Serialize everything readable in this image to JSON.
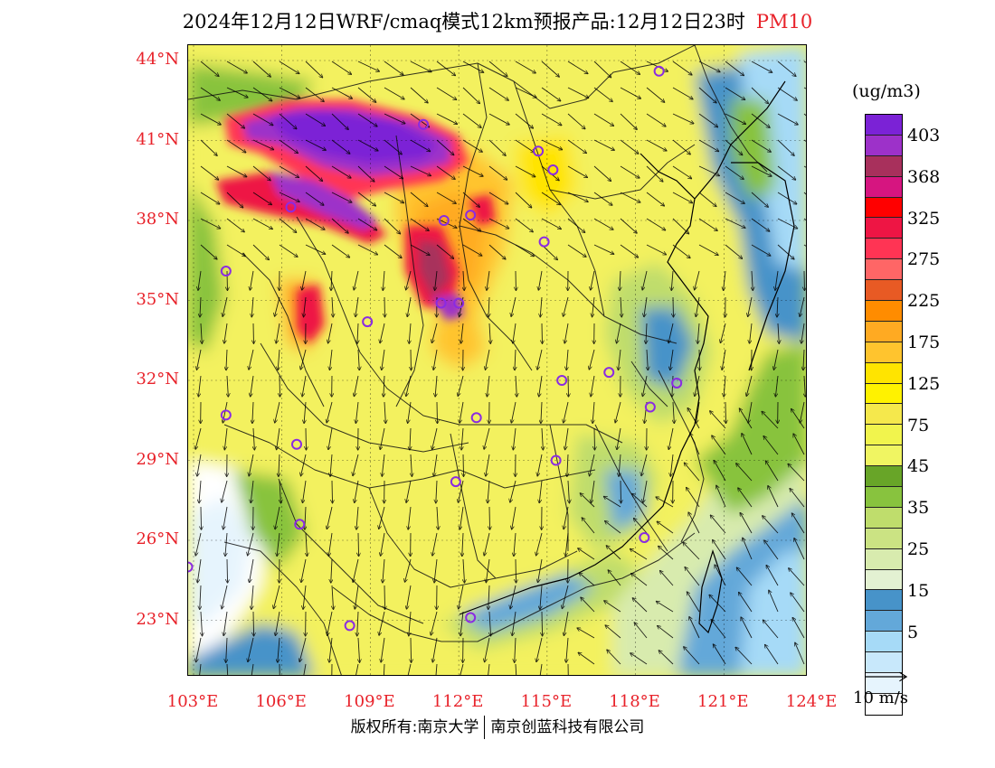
{
  "title": {
    "main": "2024年12月12日WRF/cmaq模式12km预报产品:12月12日23时",
    "pollutant": "PM10"
  },
  "lat_labels": [
    "44°N",
    "41°N",
    "38°N",
    "35°N",
    "32°N",
    "29°N",
    "26°N",
    "23°N"
  ],
  "lon_labels": [
    "103°E",
    "106°E",
    "109°E",
    "112°E",
    "115°E",
    "118°E",
    "121°E",
    "124°E"
  ],
  "colorbar": {
    "unit": "(ug/m3)",
    "colors": [
      "#7b22d6",
      "#9d31c9",
      "#a8305c",
      "#d61580",
      "#ff0000",
      "#ee1544",
      "#ff3454",
      "#ff6666",
      "#e85a24",
      "#ff8c00",
      "#ffaa22",
      "#ffc42e",
      "#ffe400",
      "#fff200",
      "#f5e84c",
      "#f1f44d",
      "#f0f562",
      "#68a528",
      "#88c33e",
      "#bfdd6c",
      "#cbe383",
      "#d8ebae",
      "#e3f1d2",
      "#4793c9",
      "#63a8d9",
      "#a6daf7",
      "#c8e8fb",
      "#e6f4fd",
      "#ffffff"
    ],
    "labels": [
      "403",
      "368",
      "325",
      "275",
      "225",
      "175",
      "125",
      "75",
      "45",
      "35",
      "25",
      "15",
      "5"
    ]
  },
  "wind_reference": {
    "label": "10 m/s"
  },
  "cities": [
    {
      "lon": 118.8,
      "lat": 43.6
    },
    {
      "lon": 114.7,
      "lat": 40.6
    },
    {
      "lon": 115.2,
      "lat": 39.9
    },
    {
      "lon": 110.8,
      "lat": 41.6
    },
    {
      "lon": 106.3,
      "lat": 38.5
    },
    {
      "lon": 111.5,
      "lat": 38.0
    },
    {
      "lon": 112.4,
      "lat": 38.2
    },
    {
      "lon": 114.9,
      "lat": 37.2
    },
    {
      "lon": 104.1,
      "lat": 36.1
    },
    {
      "lon": 111.4,
      "lat": 34.9
    },
    {
      "lon": 112.0,
      "lat": 34.9
    },
    {
      "lon": 108.9,
      "lat": 34.2
    },
    {
      "lon": 115.5,
      "lat": 32.0
    },
    {
      "lon": 117.1,
      "lat": 32.3
    },
    {
      "lon": 119.4,
      "lat": 31.9
    },
    {
      "lon": 118.5,
      "lat": 31.0
    },
    {
      "lon": 104.1,
      "lat": 30.7
    },
    {
      "lon": 112.6,
      "lat": 30.6
    },
    {
      "lon": 106.5,
      "lat": 29.6
    },
    {
      "lon": 115.3,
      "lat": 29.0
    },
    {
      "lon": 111.9,
      "lat": 28.2
    },
    {
      "lon": 106.6,
      "lat": 26.6
    },
    {
      "lon": 118.3,
      "lat": 26.1
    },
    {
      "lon": 102.8,
      "lat": 25.0
    },
    {
      "lon": 112.4,
      "lat": 23.1
    },
    {
      "lon": 108.3,
      "lat": 22.8
    }
  ],
  "copyright": {
    "left": "版权所有:南京大学",
    "right": "南京创蓝科技有限公司"
  }
}
